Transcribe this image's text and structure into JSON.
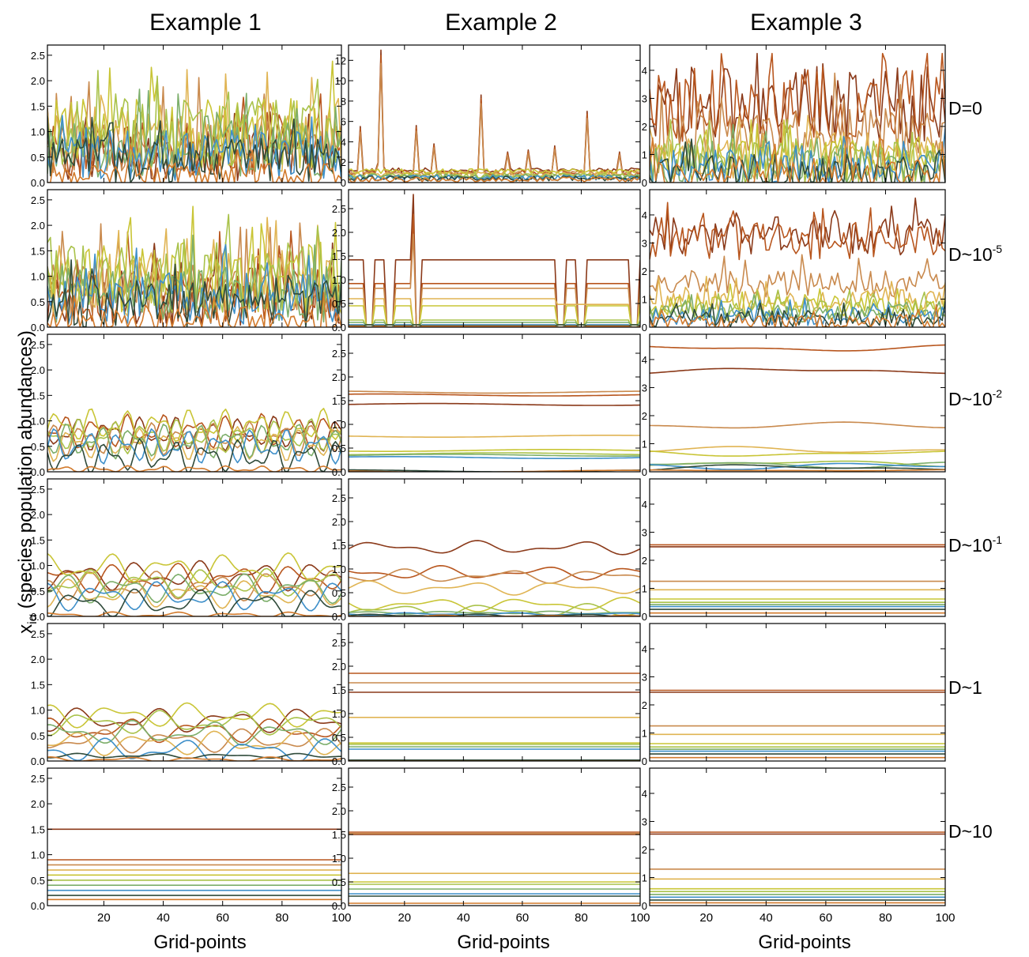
{
  "figure": {
    "column_titles": [
      "Example 1",
      "Example 2",
      "Example 3"
    ],
    "row_labels": [
      {
        "base": "D=0",
        "exp": ""
      },
      {
        "base": "D~10",
        "exp": "-5"
      },
      {
        "base": "D~10",
        "exp": "-2"
      },
      {
        "base": "D~10",
        "exp": "-1"
      },
      {
        "base": "D~1",
        "exp": ""
      },
      {
        "base": "D~10",
        "exp": ""
      }
    ],
    "xlabel": "Grid-points",
    "ylabel_main": "x",
    "ylabel_sub": "iα",
    "ylabel_rest": " (species population abundances)"
  },
  "palette": [
    "#8b3a1a",
    "#b8561e",
    "#c98a4e",
    "#e0b453",
    "#c9c536",
    "#a9c24a",
    "#7cae6a",
    "#3e8fc9",
    "#2f4a3a",
    "#d27a2c"
  ],
  "chart_data": {
    "type": "line",
    "note_columns": "columns = Example 1, Example 2, Example 3; rows = D values",
    "x_range": [
      1,
      100
    ],
    "x_ticks": [
      20,
      40,
      60,
      80,
      100
    ],
    "column_yaxes": [
      {
        "ylim": [
          0,
          2.7
        ],
        "ticks": [
          0.0,
          0.5,
          1.0,
          1.5,
          2.0,
          2.5
        ],
        "labels": [
          "0.0",
          "0.5",
          "1.0",
          "1.5",
          "2.0",
          "2.5"
        ]
      },
      {
        "ylim": [
          0,
          2.9
        ],
        "ticks": [
          0.0,
          0.5,
          1.0,
          1.5,
          2.0,
          2.5
        ],
        "labels": [
          "0.0",
          "0.5",
          "1.0",
          "1.5",
          "2.0",
          "2.5"
        ]
      },
      {
        "ylim": [
          0,
          4.9
        ],
        "ticks": [
          0,
          1,
          2,
          3,
          4
        ],
        "labels": [
          "0",
          "1",
          "2",
          "3",
          "4"
        ]
      }
    ],
    "panel00_yaxis": {
      "ylim": [
        0,
        13.5
      ],
      "ticks": [
        0,
        2,
        4,
        6,
        8,
        10,
        12
      ],
      "labels": [
        "0",
        "2",
        "4",
        "6",
        "8",
        "10",
        "12"
      ]
    },
    "panel00_col": 1,
    "panels": [
      [
        {
          "mode": "noisy",
          "levels": [
            0.5,
            0.6,
            0.7,
            0.8,
            0.9,
            0.9,
            0.6,
            0.5,
            0.4,
            0.05
          ],
          "amp": 0.7,
          "seed": 11,
          "max": 2.6
        },
        {
          "mode": "noisy",
          "levels": [
            0.5,
            0.6,
            0.7,
            0.8,
            0.9,
            0.9,
            0.6,
            0.5,
            0.4,
            0.05
          ],
          "amp": 0.7,
          "seed": 17,
          "max": 2.6
        },
        {
          "mode": "smooth",
          "levels": [
            0.75,
            0.8,
            0.65,
            0.55,
            0.9,
            0.7,
            0.6,
            0.5,
            0.3,
            0.05
          ],
          "amp": 0.35,
          "seed": 23,
          "freq": 9
        },
        {
          "mode": "smooth",
          "levels": [
            0.8,
            0.75,
            0.6,
            0.45,
            0.95,
            0.65,
            0.55,
            0.4,
            0.25,
            0.03
          ],
          "amp": 0.3,
          "seed": 29,
          "freq": 5
        },
        {
          "mode": "smooth",
          "levels": [
            0.8,
            0.6,
            0.4,
            0.35,
            0.9,
            0.75,
            0.55,
            0.2,
            0.1,
            0.03
          ],
          "amp": 0.25,
          "seed": 31,
          "freq": 4
        },
        {
          "mode": "flat",
          "levels": [
            1.5,
            0.9,
            0.8,
            0.7,
            0.6,
            0.5,
            0.4,
            0.3,
            0.2,
            0.12
          ]
        }
      ],
      [
        {
          "mode": "spiky",
          "levels": [
            1.2,
            1.0,
            0.9,
            0.8,
            1.1,
            0.7,
            0.6,
            0.5,
            0.4,
            0.3
          ],
          "amp": 0.5,
          "seed": 41,
          "peaks": [
            [
              12,
              13.0
            ],
            [
              24,
              5.6
            ],
            [
              30,
              3.8
            ],
            [
              46,
              8.6
            ],
            [
              55,
              3.0
            ],
            [
              62,
              3.2
            ],
            [
              71,
              3.6
            ],
            [
              82,
              7.0
            ],
            [
              93,
              3.0
            ],
            [
              5,
              5.5
            ]
          ]
        },
        {
          "mode": "steps",
          "levels": [
            1.42,
            0.92,
            0.82,
            0.6,
            0.45,
            0.15,
            0.1,
            0.05,
            0.03,
            0.02
          ],
          "seed": 47,
          "dips": [
            [
              6,
              8
            ],
            [
              13,
              15
            ],
            [
              22,
              24
            ],
            [
              71,
              73
            ],
            [
              78,
              80
            ],
            [
              96,
              98
            ]
          ],
          "spike": [
            23,
            2.8
          ]
        },
        {
          "mode": "flat",
          "levels": [
            1.42,
            1.62,
            1.68,
            0.75,
            0.45,
            0.38,
            0.35,
            0.3,
            0.02,
            0.01
          ],
          "wobble": 0.02
        },
        {
          "mode": "smooth",
          "levels": [
            1.45,
            0.92,
            0.85,
            0.6,
            0.25,
            0.12,
            0.08,
            0.05,
            0.02,
            0.0
          ],
          "amp": 0.15,
          "seed": 53,
          "freq": 3
        },
        {
          "mode": "flat",
          "levels": [
            1.45,
            1.85,
            1.65,
            0.92,
            0.38,
            0.35,
            0.3,
            0.25,
            0.02,
            0.0
          ]
        },
        {
          "mode": "flat",
          "levels": [
            1.5,
            1.55,
            1.52,
            0.68,
            0.5,
            0.45,
            0.35,
            0.25,
            0.2,
            0.05
          ]
        }
      ],
      [
        {
          "mode": "noisy",
          "levels": [
            2.6,
            2.6,
            1.5,
            0.9,
            0.7,
            0.6,
            0.5,
            0.4,
            0.3,
            0.2
          ],
          "amp": 1.4,
          "seed": 61,
          "max": 4.6
        },
        {
          "mode": "noisy",
          "levels": [
            3.2,
            3.0,
            1.5,
            0.9,
            0.7,
            0.55,
            0.45,
            0.35,
            0.25,
            0.15
          ],
          "amp": 0.7,
          "seed": 67,
          "max": 4.6
        },
        {
          "mode": "smooth",
          "levels": [
            3.6,
            4.4,
            1.65,
            0.78,
            0.65,
            0.3,
            0.25,
            0.2,
            0.15,
            0.05
          ],
          "amp": 0.12,
          "seed": 71,
          "freq": 1
        },
        {
          "mode": "flat",
          "levels": [
            2.48,
            2.55,
            1.25,
            0.95,
            0.62,
            0.5,
            0.42,
            0.35,
            0.25,
            0.12
          ]
        },
        {
          "mode": "flat",
          "levels": [
            2.45,
            2.52,
            1.25,
            0.95,
            0.62,
            0.5,
            0.42,
            0.35,
            0.25,
            0.12
          ]
        },
        {
          "mode": "flat",
          "levels": [
            2.55,
            2.62,
            1.3,
            0.95,
            0.6,
            0.5,
            0.4,
            0.3,
            0.2,
            0.1
          ]
        }
      ]
    ]
  }
}
